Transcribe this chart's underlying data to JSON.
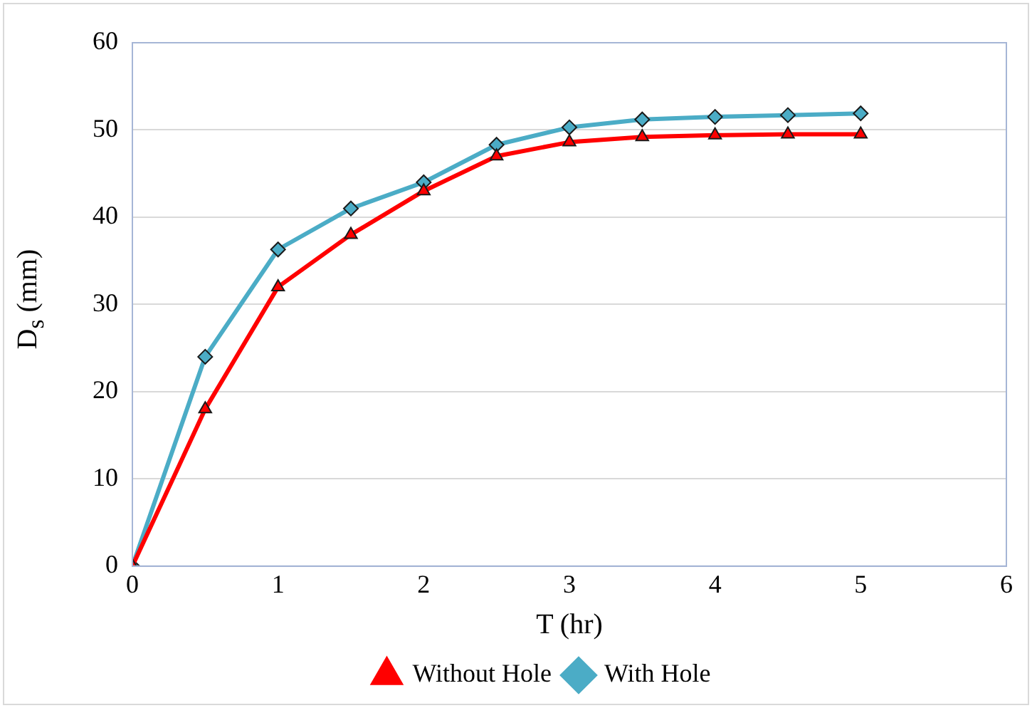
{
  "chart_data": {
    "type": "line",
    "xlabel": "T (hr)",
    "ylabel": "D$_{s}$ (mm)",
    "x": [
      0,
      0.5,
      1,
      1.5,
      2,
      2.5,
      3,
      3.5,
      4,
      4.5,
      5
    ],
    "series": [
      {
        "name": "Without Hole",
        "color": "#ff0000",
        "marker": "triangle",
        "values": [
          0,
          18,
          32,
          38,
          43,
          47,
          48.6,
          49.2,
          49.4,
          49.5,
          49.5
        ]
      },
      {
        "name": "With Hole",
        "color": "#4bacc6",
        "marker": "diamond",
        "values": [
          0,
          24,
          36.3,
          41,
          44,
          48.3,
          50.3,
          51.2,
          51.5,
          51.7,
          51.9
        ]
      }
    ],
    "xlim": [
      0,
      6
    ],
    "xticks": [
      0,
      1,
      2,
      3,
      4,
      5,
      6
    ],
    "ylim": [
      0,
      60
    ],
    "yticks": [
      0,
      10,
      20,
      30,
      40,
      50,
      60
    ],
    "grid": "y",
    "legend": "bottom"
  }
}
